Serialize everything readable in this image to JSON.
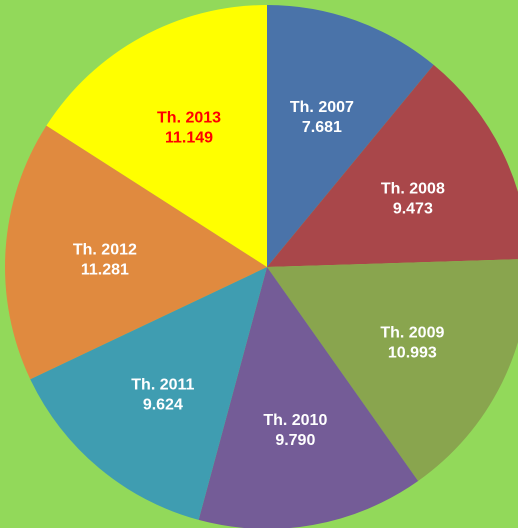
{
  "chart_data": {
    "type": "pie",
    "categories": [
      "Th. 2007",
      "Th. 2008",
      "Th. 2009",
      "Th. 2010",
      "Th. 2011",
      "Th. 2012",
      "Th. 2013"
    ],
    "values": [
      7681,
      9473,
      10993,
      9790,
      9624,
      11281,
      11149
    ],
    "value_labels": [
      "7.681",
      "9.473",
      "10.993",
      "9.790",
      "9.624",
      "11.281",
      "11.149"
    ],
    "colors": [
      "#4a73a9",
      "#a9474a",
      "#89a54e",
      "#745c97",
      "#3f9db1",
      "#e08a3f",
      "#ffff00"
    ],
    "label_colors": [
      "#ffffff",
      "#ffffff",
      "#ffffff",
      "#ffffff",
      "#ffffff",
      "#ffffff",
      "#ff0000"
    ],
    "start_angle": 0,
    "direction": "clockwise"
  }
}
